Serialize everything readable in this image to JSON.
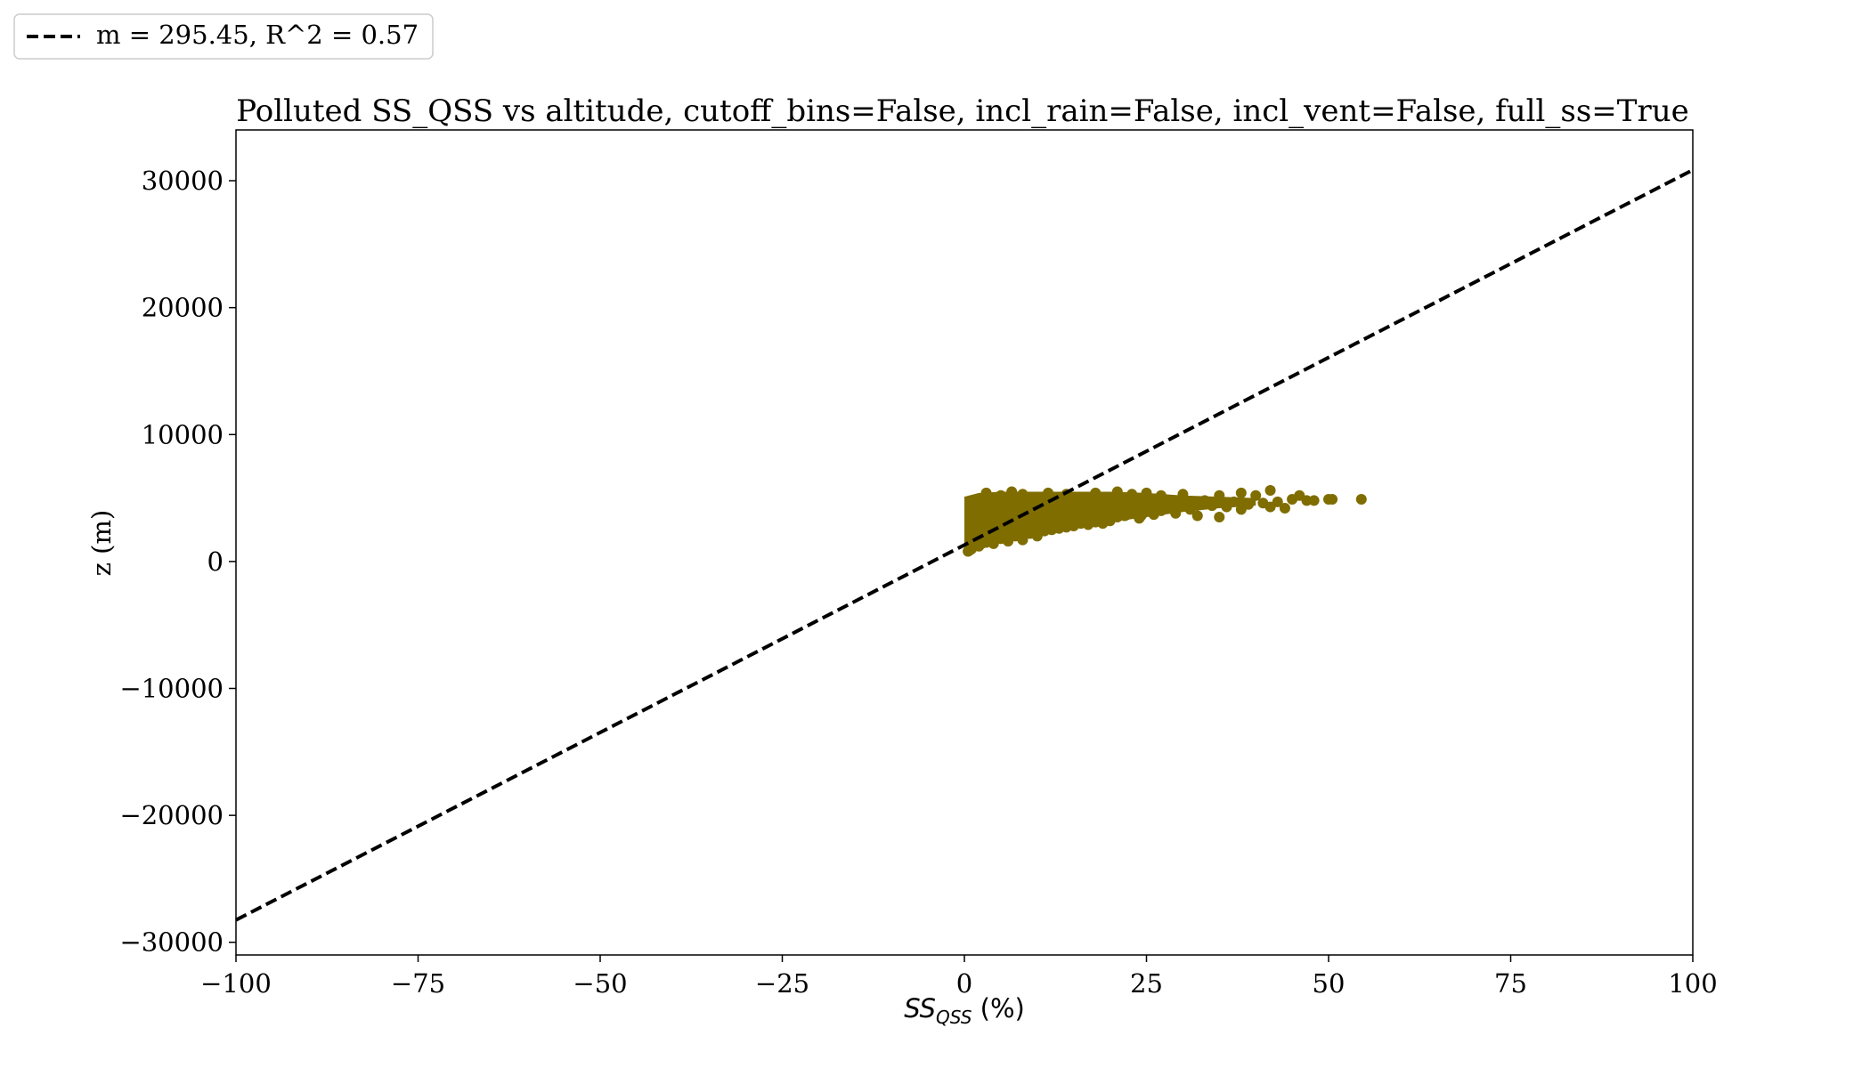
{
  "chart_data": {
    "type": "scatter",
    "title": "Polluted SS_QSS vs altitude, cutoff_bins=False, incl_rain=False, incl_vent=False, full_ss=True",
    "xlabel": {
      "base": "SS",
      "sub": "QSS",
      "suffix": " (%)"
    },
    "ylabel": "z (m)",
    "xlim": [
      -100,
      100
    ],
    "ylim": [
      -31000,
      34000
    ],
    "xticks": [
      -100,
      -75,
      -50,
      -25,
      0,
      25,
      50,
      75,
      100
    ],
    "xtick_labels": [
      "−100",
      "−75",
      "−50",
      "−25",
      "0",
      "25",
      "50",
      "75",
      "100"
    ],
    "yticks": [
      -30000,
      -20000,
      -10000,
      0,
      10000,
      20000,
      30000
    ],
    "ytick_labels": [
      "−30000",
      "−20000",
      "−10000",
      "0",
      "10000",
      "20000",
      "30000"
    ],
    "grid": false,
    "legend_placement": "upper-left, outside the axes",
    "series": [
      {
        "kind": "fit_line",
        "name": "m = 295.45, R^2 = 0.57",
        "style": "dashed",
        "color": "#000000",
        "slope": 295.45,
        "intercept": 1300,
        "x": [
          -100,
          100
        ],
        "y": [
          -28245,
          30845
        ]
      },
      {
        "kind": "scatter",
        "color": "#7f6d00",
        "points": [
          [
            0.5,
            800
          ],
          [
            1,
            1000
          ],
          [
            1,
            2500
          ],
          [
            1,
            4800
          ],
          [
            1.5,
            3500
          ],
          [
            2,
            1200
          ],
          [
            2,
            2000
          ],
          [
            2,
            4000
          ],
          [
            2.5,
            5000
          ],
          [
            3,
            1500
          ],
          [
            3,
            3000
          ],
          [
            3,
            5400
          ],
          [
            4,
            1400
          ],
          [
            4,
            2500
          ],
          [
            4,
            4500
          ],
          [
            5,
            1800
          ],
          [
            5,
            3200
          ],
          [
            5,
            5200
          ],
          [
            6,
            1600
          ],
          [
            6,
            4000
          ],
          [
            6.5,
            5500
          ],
          [
            7,
            2000
          ],
          [
            7,
            3000
          ],
          [
            7,
            4800
          ],
          [
            8,
            1700
          ],
          [
            8,
            3500
          ],
          [
            8,
            5300
          ],
          [
            9,
            2200
          ],
          [
            9,
            4200
          ],
          [
            10,
            2000
          ],
          [
            10,
            3000
          ],
          [
            10,
            5000
          ],
          [
            11,
            2400
          ],
          [
            11,
            4500
          ],
          [
            11.5,
            5400
          ],
          [
            12,
            2500
          ],
          [
            12,
            3800
          ],
          [
            13,
            2600
          ],
          [
            13,
            4800
          ],
          [
            14,
            2700
          ],
          [
            14,
            5300
          ],
          [
            15,
            2800
          ],
          [
            15,
            4200
          ],
          [
            16,
            3000
          ],
          [
            16,
            5000
          ],
          [
            17,
            2900
          ],
          [
            17,
            4500
          ],
          [
            18,
            3100
          ],
          [
            18,
            5400
          ],
          [
            19,
            3000
          ],
          [
            19,
            4600
          ],
          [
            20,
            3200
          ],
          [
            20,
            5000
          ],
          [
            21,
            3500
          ],
          [
            21,
            5500
          ],
          [
            22,
            3600
          ],
          [
            23,
            3900
          ],
          [
            23,
            5300
          ],
          [
            24,
            3400
          ],
          [
            25,
            4200
          ],
          [
            25,
            5400
          ],
          [
            26,
            3700
          ],
          [
            27,
            4000
          ],
          [
            27,
            5200
          ],
          [
            28,
            4400
          ],
          [
            29,
            3800
          ],
          [
            30,
            4600
          ],
          [
            30,
            5300
          ],
          [
            31,
            4100
          ],
          [
            32,
            3600
          ],
          [
            33,
            4800
          ],
          [
            34,
            4400
          ],
          [
            35,
            3500
          ],
          [
            35,
            5200
          ],
          [
            36,
            4300
          ],
          [
            37,
            4700
          ],
          [
            38,
            4100
          ],
          [
            38,
            5400
          ],
          [
            39,
            4500
          ],
          [
            40,
            5200
          ],
          [
            41,
            4600
          ],
          [
            42,
            5600
          ],
          [
            42,
            4300
          ],
          [
            43,
            4700
          ],
          [
            44,
            4200
          ],
          [
            45,
            4900
          ],
          [
            46,
            5200
          ],
          [
            47,
            4800
          ],
          [
            48,
            4800
          ],
          [
            50,
            4900
          ],
          [
            50.5,
            4900
          ],
          [
            54.5,
            4900
          ]
        ]
      }
    ]
  }
}
